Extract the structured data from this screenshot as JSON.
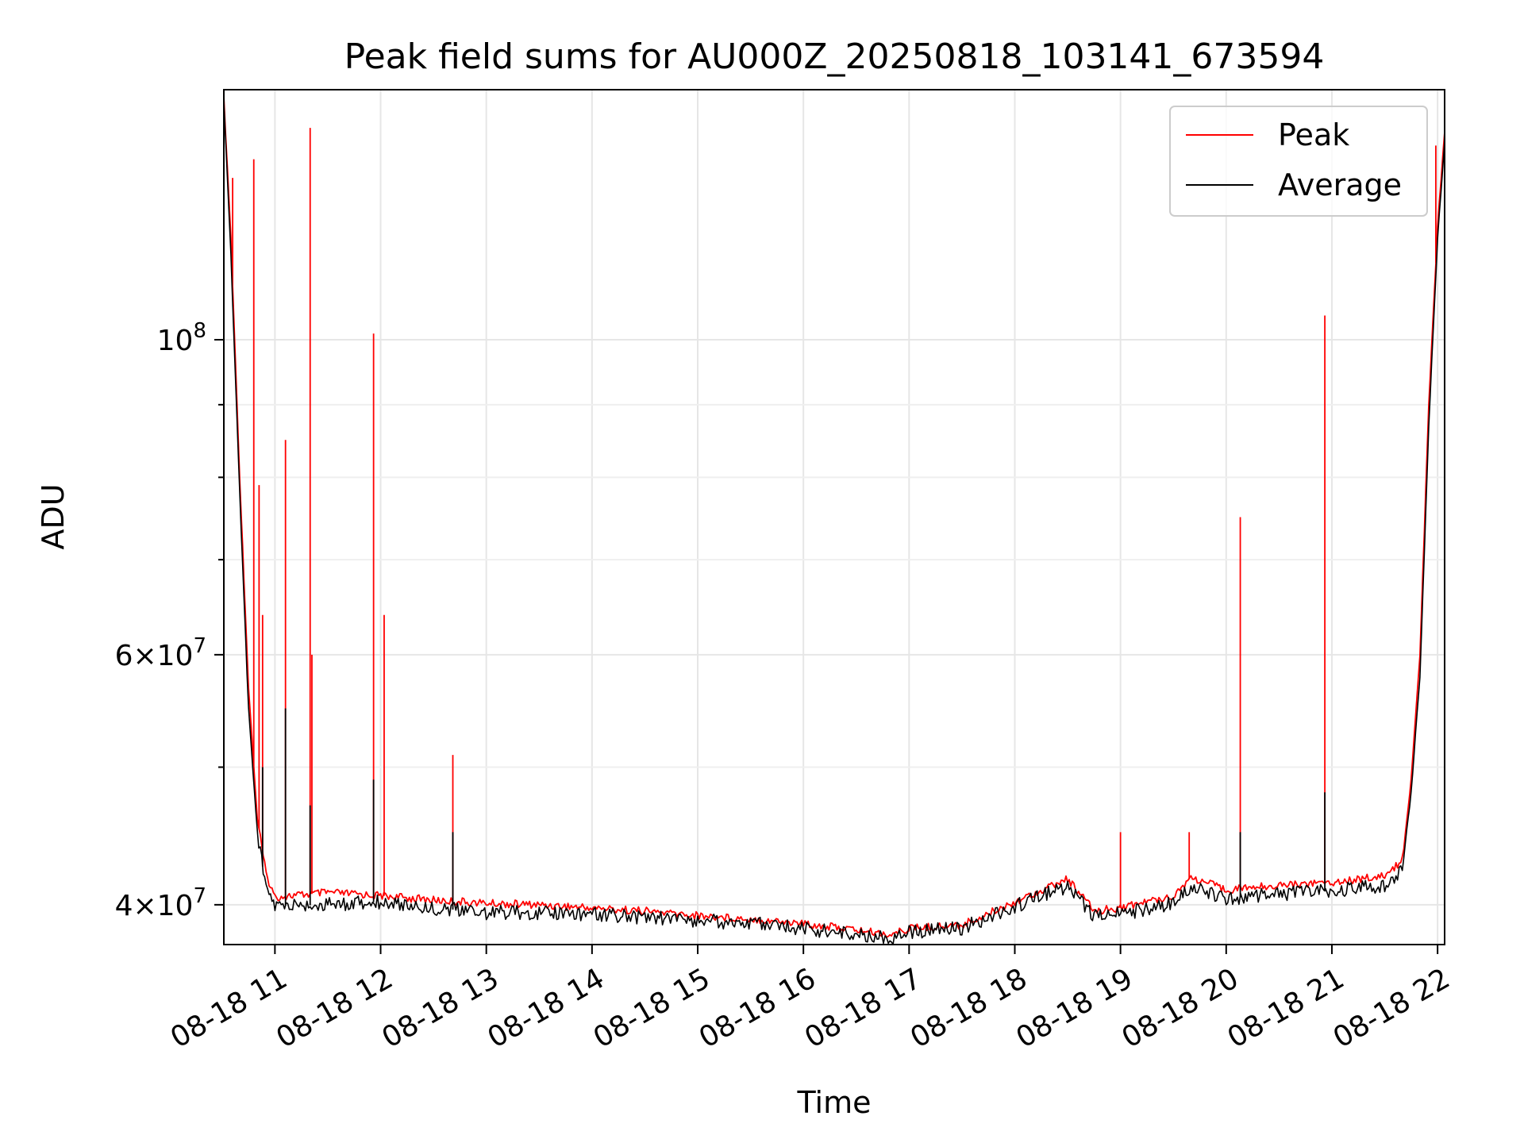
{
  "chart_data": {
    "type": "line",
    "title": "Peak field sums for AU000Z_20250818_103141_673594",
    "xlabel": "Time",
    "ylabel": "ADU",
    "y_scale": "log",
    "grid": true,
    "legend_position": "top-right",
    "xlim": [
      "2025-08-18 10:31",
      "2025-08-18 22:04"
    ],
    "ylim": [
      37500000,
      150000000
    ],
    "x_ticks": [
      {
        "value": "2025-08-18 11:00",
        "label": "08-18 11"
      },
      {
        "value": "2025-08-18 12:00",
        "label": "08-18 12"
      },
      {
        "value": "2025-08-18 13:00",
        "label": "08-18 13"
      },
      {
        "value": "2025-08-18 14:00",
        "label": "08-18 14"
      },
      {
        "value": "2025-08-18 15:00",
        "label": "08-18 15"
      },
      {
        "value": "2025-08-18 16:00",
        "label": "08-18 16"
      },
      {
        "value": "2025-08-18 17:00",
        "label": "08-18 17"
      },
      {
        "value": "2025-08-18 18:00",
        "label": "08-18 18"
      },
      {
        "value": "2025-08-18 19:00",
        "label": "08-18 19"
      },
      {
        "value": "2025-08-18 20:00",
        "label": "08-18 20"
      },
      {
        "value": "2025-08-18 21:00",
        "label": "08-18 21"
      },
      {
        "value": "2025-08-18 22:00",
        "label": "08-18 22"
      }
    ],
    "y_ticks": [
      {
        "value": 40000000,
        "mant": "4",
        "exp": "7"
      },
      {
        "value": 60000000,
        "mant": "6",
        "exp": "7"
      },
      {
        "value": 100000000,
        "mant": "",
        "exp": "8"
      }
    ],
    "y_minor_ticks": [
      50000000,
      70000000,
      80000000,
      90000000
    ],
    "series": [
      {
        "name": "Peak",
        "color": "#ff0000",
        "points": [
          [
            "2025-08-18 10:31",
            148000000
          ],
          [
            "2025-08-18 10:35",
            118000000
          ],
          [
            "2025-08-18 10:40",
            80000000
          ],
          [
            "2025-08-18 10:45",
            57000000
          ],
          [
            "2025-08-18 10:50",
            46000000
          ],
          [
            "2025-08-18 10:55",
            42000000
          ],
          [
            "2025-08-18 11:00",
            40500000
          ],
          [
            "2025-08-18 11:30",
            40800000
          ],
          [
            "2025-08-18 12:00",
            40600000
          ],
          [
            "2025-08-18 12:30",
            40300000
          ],
          [
            "2025-08-18 13:00",
            40100000
          ],
          [
            "2025-08-18 13:30",
            40000000
          ],
          [
            "2025-08-18 14:00",
            39800000
          ],
          [
            "2025-08-18 14:30",
            39600000
          ],
          [
            "2025-08-18 15:00",
            39300000
          ],
          [
            "2025-08-18 15:30",
            39100000
          ],
          [
            "2025-08-18 16:00",
            38800000
          ],
          [
            "2025-08-18 16:30",
            38400000
          ],
          [
            "2025-08-18 16:50",
            38100000
          ],
          [
            "2025-08-18 17:00",
            38500000
          ],
          [
            "2025-08-18 17:30",
            38700000
          ],
          [
            "2025-08-18 18:00",
            40200000
          ],
          [
            "2025-08-18 18:20",
            41200000
          ],
          [
            "2025-08-18 18:30",
            41700000
          ],
          [
            "2025-08-18 18:45",
            39600000
          ],
          [
            "2025-08-18 19:00",
            39800000
          ],
          [
            "2025-08-18 19:30",
            40600000
          ],
          [
            "2025-08-18 19:40",
            41800000
          ],
          [
            "2025-08-18 20:00",
            41000000
          ],
          [
            "2025-08-18 20:30",
            41300000
          ],
          [
            "2025-08-18 21:00",
            41500000
          ],
          [
            "2025-08-18 21:30",
            41900000
          ],
          [
            "2025-08-18 21:40",
            43000000
          ],
          [
            "2025-08-18 21:45",
            49000000
          ],
          [
            "2025-08-18 21:50",
            60000000
          ],
          [
            "2025-08-18 21:55",
            90000000
          ],
          [
            "2025-08-18 22:00",
            120000000
          ],
          [
            "2025-08-18 22:04",
            140000000
          ]
        ],
        "spikes": [
          [
            "2025-08-18 10:36",
            130000000
          ],
          [
            "2025-08-18 10:48",
            134000000
          ],
          [
            "2025-08-18 10:51",
            79000000
          ],
          [
            "2025-08-18 10:53",
            64000000
          ],
          [
            "2025-08-18 11:06",
            85000000
          ],
          [
            "2025-08-18 11:20",
            141000000
          ],
          [
            "2025-08-18 11:21",
            60000000
          ],
          [
            "2025-08-18 11:56",
            101000000
          ],
          [
            "2025-08-18 12:02",
            64000000
          ],
          [
            "2025-08-18 12:41",
            51000000
          ],
          [
            "2025-08-18 19:00",
            45000000
          ],
          [
            "2025-08-18 19:39",
            45000000
          ],
          [
            "2025-08-18 20:08",
            75000000
          ],
          [
            "2025-08-18 20:56",
            104000000
          ],
          [
            "2025-08-18 21:59",
            137000000
          ]
        ]
      },
      {
        "name": "Average",
        "color": "#000000",
        "points": [
          [
            "2025-08-18 10:31",
            147000000
          ],
          [
            "2025-08-18 10:35",
            115000000
          ],
          [
            "2025-08-18 10:40",
            78000000
          ],
          [
            "2025-08-18 10:45",
            55000000
          ],
          [
            "2025-08-18 10:50",
            45000000
          ],
          [
            "2025-08-18 10:55",
            41000000
          ],
          [
            "2025-08-18 11:00",
            39900000
          ],
          [
            "2025-08-18 11:30",
            40000000
          ],
          [
            "2025-08-18 12:00",
            40200000
          ],
          [
            "2025-08-18 12:30",
            39800000
          ],
          [
            "2025-08-18 13:00",
            39500000
          ],
          [
            "2025-08-18 13:30",
            39500000
          ],
          [
            "2025-08-18 14:00",
            39400000
          ],
          [
            "2025-08-18 14:30",
            39200000
          ],
          [
            "2025-08-18 15:00",
            39000000
          ],
          [
            "2025-08-18 15:30",
            38800000
          ],
          [
            "2025-08-18 16:00",
            38500000
          ],
          [
            "2025-08-18 16:30",
            38100000
          ],
          [
            "2025-08-18 16:50",
            37900000
          ],
          [
            "2025-08-18 17:00",
            38300000
          ],
          [
            "2025-08-18 17:30",
            38500000
          ],
          [
            "2025-08-18 18:00",
            39900000
          ],
          [
            "2025-08-18 18:20",
            40800000
          ],
          [
            "2025-08-18 18:30",
            41200000
          ],
          [
            "2025-08-18 18:45",
            39200000
          ],
          [
            "2025-08-18 19:00",
            39400000
          ],
          [
            "2025-08-18 19:30",
            40100000
          ],
          [
            "2025-08-18 19:40",
            41200000
          ],
          [
            "2025-08-18 20:00",
            40400000
          ],
          [
            "2025-08-18 20:30",
            40700000
          ],
          [
            "2025-08-18 21:00",
            40900000
          ],
          [
            "2025-08-18 21:30",
            41300000
          ],
          [
            "2025-08-18 21:40",
            42400000
          ],
          [
            "2025-08-18 21:45",
            48000000
          ],
          [
            "2025-08-18 21:50",
            58000000
          ],
          [
            "2025-08-18 21:55",
            87000000
          ],
          [
            "2025-08-18 22:00",
            118000000
          ],
          [
            "2025-08-18 22:04",
            138000000
          ]
        ],
        "spikes": [
          [
            "2025-08-18 10:53",
            50000000
          ],
          [
            "2025-08-18 11:06",
            55000000
          ],
          [
            "2025-08-18 11:20",
            47000000
          ],
          [
            "2025-08-18 11:56",
            49000000
          ],
          [
            "2025-08-18 12:41",
            45000000
          ],
          [
            "2025-08-18 20:08",
            45000000
          ],
          [
            "2025-08-18 20:56",
            48000000
          ]
        ]
      }
    ]
  }
}
